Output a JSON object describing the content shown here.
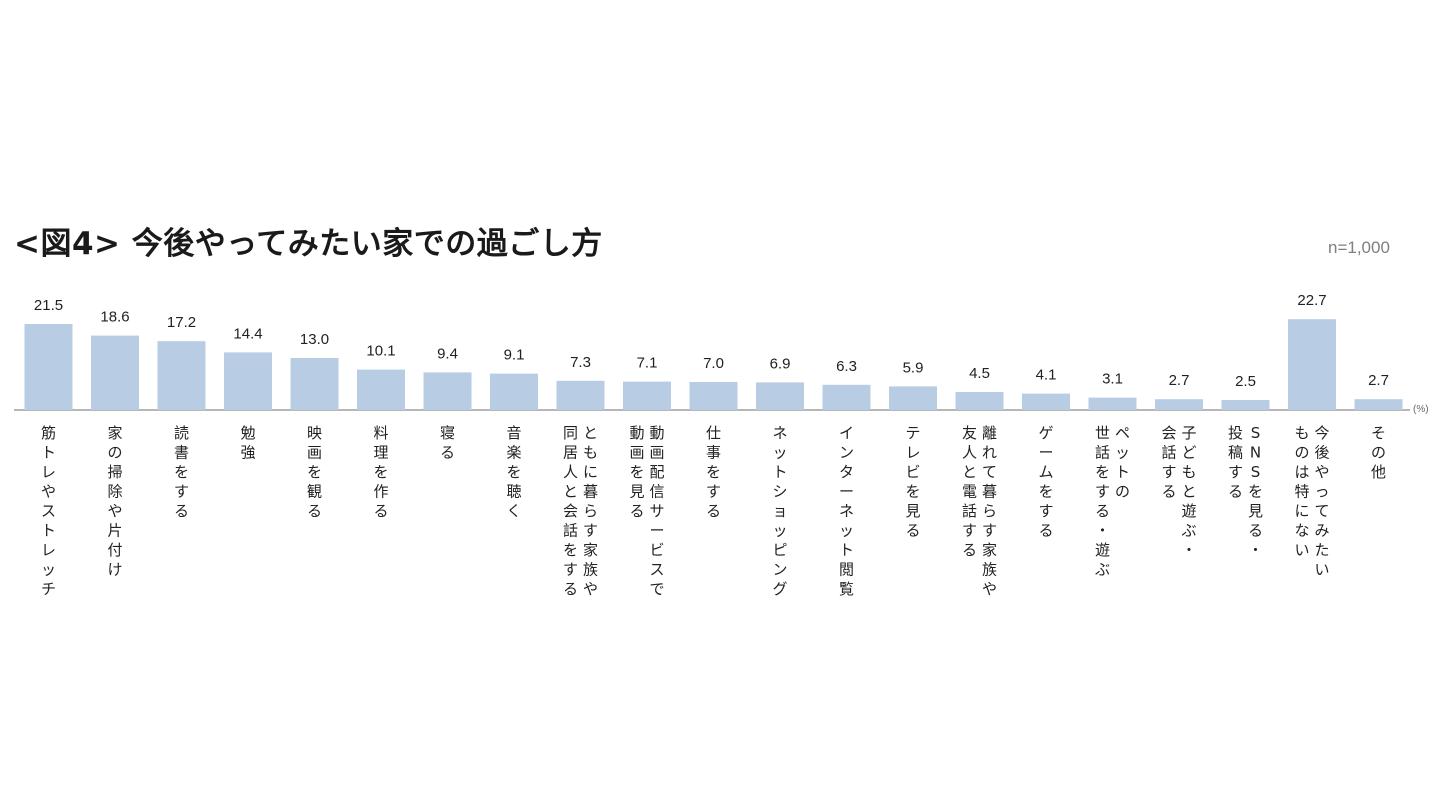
{
  "chart_data": {
    "type": "bar",
    "title": "<図4> 今後やってみたい家での過ごし方",
    "sample_note": "n=1,000",
    "unit_label": "(%)",
    "bar_color": "#b8cce4",
    "axis_color": "#8c8c8c",
    "ylim": [
      0,
      25
    ],
    "categories": [
      "筋トレやストレッチ",
      "家の掃除や片付け",
      "読書をする",
      "勉強",
      "映画を観る",
      "料理を作る",
      "寝る",
      "音楽を聴く",
      "ともに暮らす家族や同居人と会話をする",
      "動画配信サービスで動画を見る",
      "仕事をする",
      "ネットショッピング",
      "インターネット閲覧",
      "テレビを見る",
      "離れて暮らす家族や友人と電話する",
      "ゲームをする",
      "ペットの世話をする・遊ぶ",
      "子どもと遊ぶ・会話する",
      "SNSを見る・投稿する",
      "今後やってみたいものは特にない",
      "その他"
    ],
    "label_lines": [
      [
        "筋トレやストレッチ"
      ],
      [
        "家の掃除や片付け"
      ],
      [
        "読書をする"
      ],
      [
        "勉強"
      ],
      [
        "映画を観る"
      ],
      [
        "料理を作る"
      ],
      [
        "寝る"
      ],
      [
        "音楽を聴く"
      ],
      [
        "ともに暮らす家族や",
        "同居人と会話をする"
      ],
      [
        "動画配信サービスで",
        "動画を見る"
      ],
      [
        "仕事をする"
      ],
      [
        "ネットショッピング"
      ],
      [
        "インターネット閲覧"
      ],
      [
        "テレビを見る"
      ],
      [
        "離れて暮らす家族や",
        "友人と電話する"
      ],
      [
        "ゲームをする"
      ],
      [
        "ペットの",
        "世話をする・遊ぶ"
      ],
      [
        "子どもと遊ぶ・",
        "会話する"
      ],
      [
        "SNSを見る・",
        "投稿する"
      ],
      [
        "今後やってみたい",
        "ものは特にない"
      ],
      [
        "その他"
      ]
    ],
    "values": [
      21.5,
      18.6,
      17.2,
      14.4,
      13.0,
      10.1,
      9.4,
      9.1,
      7.3,
      7.1,
      7.0,
      6.9,
      6.3,
      5.9,
      4.5,
      4.1,
      3.1,
      2.7,
      2.5,
      22.7,
      2.7
    ],
    "value_labels": [
      "21.5",
      "18.6",
      "17.2",
      "14.4",
      "13.0",
      "10.1",
      "9.4",
      "9.1",
      "7.3",
      "7.1",
      "7.0",
      "6.9",
      "6.3",
      "5.9",
      "4.5",
      "4.1",
      "3.1",
      "2.7",
      "2.5",
      "22.7",
      "2.7"
    ]
  }
}
